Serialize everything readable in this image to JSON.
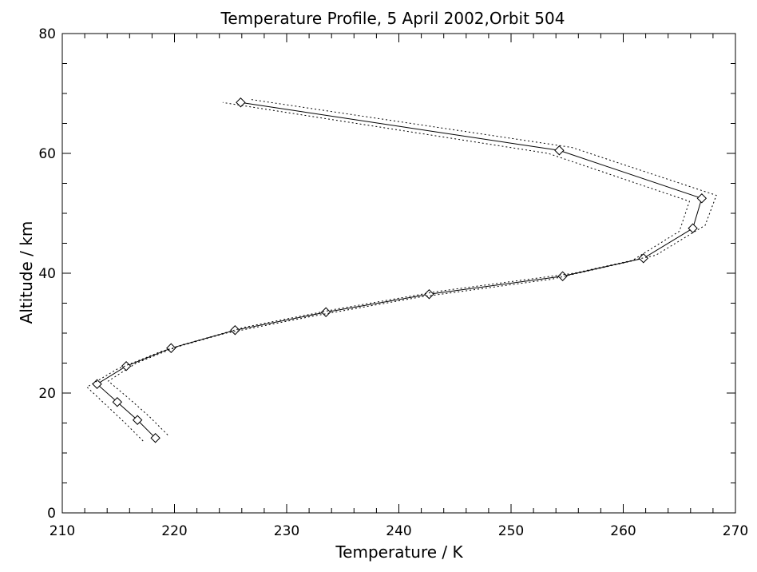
{
  "chart_data": {
    "type": "line",
    "title": "Temperature Profile, 5 April 2002,Orbit 504",
    "xlabel": "Temperature / K",
    "ylabel": "Altitude / km",
    "xlim": [
      210,
      270
    ],
    "ylim": [
      0,
      80
    ],
    "xticks": [
      210,
      220,
      230,
      240,
      250,
      260,
      270
    ],
    "yticks": [
      0,
      20,
      40,
      60,
      80
    ],
    "x_minor_step": 2,
    "y_minor_step": 5,
    "grid": false,
    "legend": "none",
    "series": [
      {
        "style": "solid",
        "marker": "diamond",
        "points": [
          [
            218.3,
            12.5
          ],
          [
            216.7,
            15.5
          ],
          [
            214.9,
            18.5
          ],
          [
            213.1,
            21.5
          ],
          [
            215.7,
            24.5
          ],
          [
            219.7,
            27.5
          ],
          [
            225.4,
            30.5
          ],
          [
            233.5,
            33.5
          ],
          [
            242.7,
            36.5
          ],
          [
            254.6,
            39.5
          ],
          [
            261.8,
            42.5
          ],
          [
            266.2,
            47.5
          ],
          [
            267.0,
            52.5
          ],
          [
            254.3,
            60.5
          ],
          [
            225.9,
            68.5
          ]
        ]
      },
      {
        "style": "dotted",
        "marker": "none",
        "points": [
          [
            217.2,
            12.0
          ],
          [
            215.6,
            15.0
          ],
          [
            213.9,
            18.0
          ],
          [
            212.2,
            21.0
          ],
          [
            214.9,
            24.0
          ],
          [
            218.9,
            27.0
          ],
          [
            224.6,
            30.0
          ],
          [
            232.8,
            33.0
          ],
          [
            241.8,
            36.0
          ],
          [
            253.6,
            39.0
          ],
          [
            260.7,
            42.0
          ],
          [
            265.0,
            47.0
          ],
          [
            265.9,
            52.0
          ],
          [
            253.3,
            60.0
          ],
          [
            224.3,
            68.5
          ]
        ]
      },
      {
        "style": "dotted",
        "marker": "none",
        "points": [
          [
            219.4,
            13.0
          ],
          [
            217.8,
            16.0
          ],
          [
            216.0,
            19.0
          ],
          [
            214.1,
            22.0
          ],
          [
            216.6,
            25.0
          ],
          [
            220.6,
            28.0
          ],
          [
            226.3,
            31.0
          ],
          [
            234.4,
            34.0
          ],
          [
            243.6,
            37.0
          ],
          [
            255.6,
            40.0
          ],
          [
            262.9,
            43.0
          ],
          [
            267.3,
            48.0
          ],
          [
            268.3,
            53.0
          ],
          [
            255.4,
            61.0
          ],
          [
            226.8,
            69.0
          ]
        ]
      }
    ]
  }
}
